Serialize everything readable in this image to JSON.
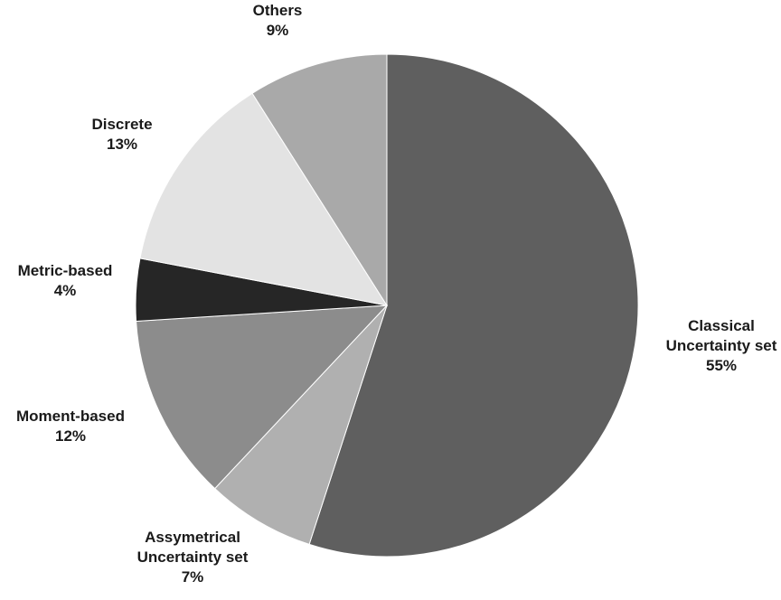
{
  "chart_data": {
    "type": "pie",
    "categories": [
      "Classical Uncertainty set",
      "Assymetrical Uncertainty set",
      "Moment-based",
      "Metric-based",
      "Discrete",
      "Others"
    ],
    "values": [
      55,
      7,
      12,
      4,
      13,
      9
    ],
    "labels": [
      {
        "lines": [
          "Classical",
          "Uncertainty set"
        ],
        "percent": "55%"
      },
      {
        "lines": [
          "Assymetrical",
          "Uncertainty set"
        ],
        "percent": "7%"
      },
      {
        "lines": [
          "Moment-based"
        ],
        "percent": "12%"
      },
      {
        "lines": [
          "Metric-based"
        ],
        "percent": "4%"
      },
      {
        "lines": [
          "Discrete"
        ],
        "percent": "13%"
      },
      {
        "lines": [
          "Others"
        ],
        "percent": "9%"
      }
    ],
    "colors": [
      "#5f5f5f",
      "#b0b0b0",
      "#8c8c8c",
      "#262626",
      "#e3e3e3",
      "#a9a9a9"
    ],
    "start": "12 o'clock",
    "direction": "clockwise",
    "legend": "none"
  }
}
